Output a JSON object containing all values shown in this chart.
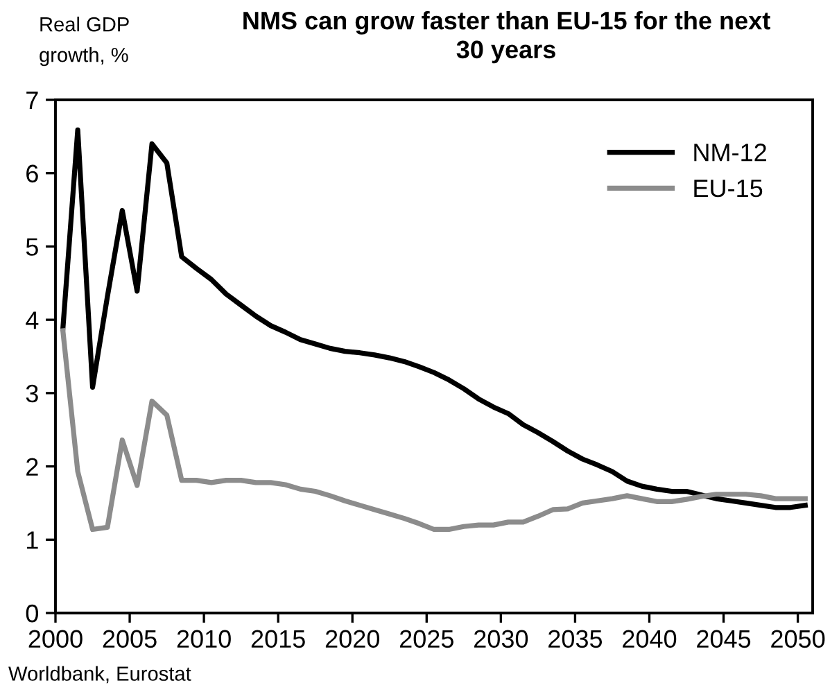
{
  "chart_data": {
    "type": "line",
    "title": "NMS can grow faster than EU-15 for the next\n30 years",
    "ylabel": "Real GDP\ngrowth, %",
    "annotations": [
      "Worldbank, Eurostat"
    ],
    "x": [
      2000.5,
      2001.5,
      2002.5,
      2003.5,
      2004.5,
      2005.5,
      2006.5,
      2007.5,
      2008.5,
      2009.5,
      2010.5,
      2011.5,
      2012.5,
      2013.5,
      2014.5,
      2015.5,
      2016.5,
      2017.5,
      2018.5,
      2019.5,
      2020.5,
      2021.5,
      2022.5,
      2023.5,
      2024.5,
      2025.5,
      2026.5,
      2027.5,
      2028.5,
      2029.5,
      2030.5,
      2031.5,
      2032.5,
      2033.5,
      2034.5,
      2035.5,
      2036.5,
      2037.5,
      2038.5,
      2039.5,
      2040.5,
      2041.5,
      2042.5,
      2043.5,
      2044.5,
      2045.5,
      2046.5,
      2047.5,
      2048.5,
      2049.5,
      2050.5
    ],
    "series": [
      {
        "name": "NM-12",
        "color": "#000000",
        "values": [
          3.88,
          6.59,
          3.08,
          4.32,
          5.49,
          4.39,
          6.4,
          6.14,
          4.86,
          4.7,
          4.55,
          4.35,
          4.2,
          4.05,
          3.92,
          3.83,
          3.73,
          3.67,
          3.61,
          3.57,
          3.55,
          3.52,
          3.48,
          3.43,
          3.36,
          3.28,
          3.18,
          3.06,
          2.92,
          2.81,
          2.72,
          2.57,
          2.46,
          2.34,
          2.21,
          2.1,
          2.02,
          1.93,
          1.8,
          1.73,
          1.69,
          1.66,
          1.66,
          1.61,
          1.56,
          1.53,
          1.5,
          1.47,
          1.44,
          1.44,
          1.47
        ]
      },
      {
        "name": "EU-15",
        "color": "#8c8c8c",
        "values": [
          3.85,
          1.93,
          1.14,
          1.17,
          2.36,
          1.74,
          2.89,
          2.7,
          1.81,
          1.81,
          1.78,
          1.81,
          1.81,
          1.78,
          1.78,
          1.75,
          1.69,
          1.66,
          1.6,
          1.53,
          1.47,
          1.41,
          1.35,
          1.29,
          1.22,
          1.14,
          1.14,
          1.18,
          1.2,
          1.2,
          1.24,
          1.24,
          1.32,
          1.41,
          1.42,
          1.5,
          1.53,
          1.56,
          1.6,
          1.56,
          1.52,
          1.52,
          1.55,
          1.59,
          1.62,
          1.62,
          1.62,
          1.6,
          1.56,
          1.56,
          1.56
        ]
      }
    ],
    "xlim": [
      2000,
      2051
    ],
    "xticks": [
      2000,
      2005,
      2010,
      2015,
      2020,
      2025,
      2030,
      2035,
      2040,
      2045,
      2050
    ],
    "ylim": [
      0,
      7
    ],
    "yticks": [
      0,
      1,
      2,
      3,
      4,
      5,
      6,
      7
    ],
    "grid": false,
    "legend": "top right",
    "line_style": "solid",
    "marker": "none"
  }
}
